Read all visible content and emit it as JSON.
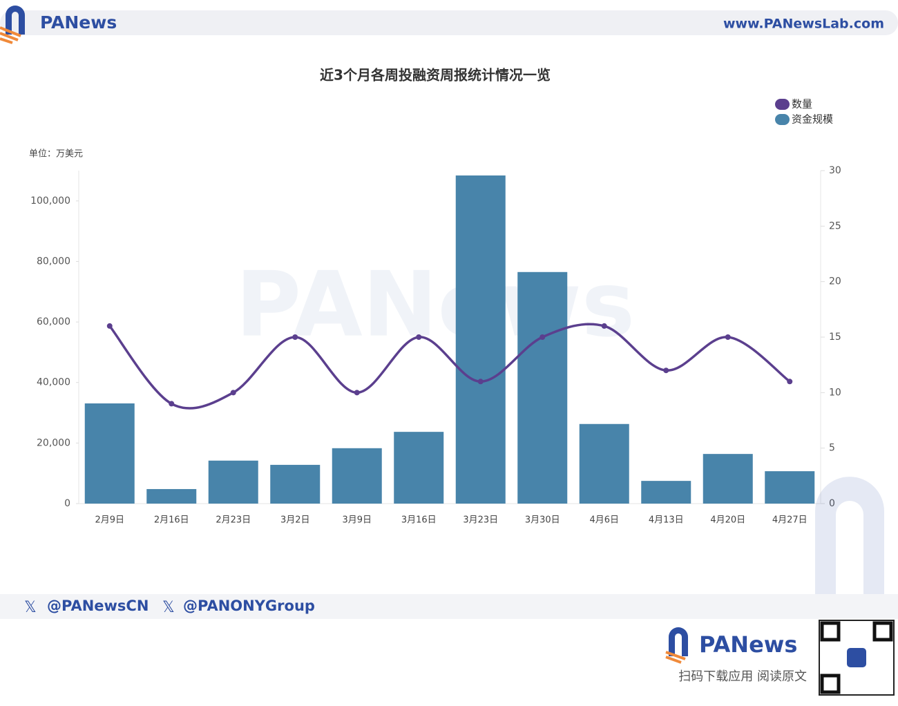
{
  "header": {
    "logo": "PANews",
    "url": "www.PANewsLab.com"
  },
  "chart_data": {
    "type": "bar-line",
    "title": "近3个月各周投融资周报统计情况一览",
    "y_label": "单位：万美元",
    "watermark": "PANews",
    "categories": [
      "2月9日",
      "2月16日",
      "2月23日",
      "3月2日",
      "3月9日",
      "3月16日",
      "3月23日",
      "3月30日",
      "4月6日",
      "4月13日",
      "4月20日",
      "4月27日"
    ],
    "series": [
      {
        "name": "数量",
        "type": "line",
        "axis": "y2",
        "color": "#5b3f8e",
        "values": [
          16,
          9,
          10,
          15,
          10,
          15,
          11,
          15,
          16,
          12,
          15,
          11
        ]
      },
      {
        "name": "资金规模",
        "type": "bar",
        "color": "#4884aa",
        "values": [
          33100,
          4800,
          14200,
          12800,
          18300,
          23700,
          108400,
          76500,
          26300,
          7500,
          16400,
          10700
        ]
      }
    ],
    "ylim": [
      0,
      110000
    ],
    "yticks": [
      0,
      {
        "value": 20000,
        "label": "20,000"
      },
      {
        "value": 40000,
        "label": "40,000"
      },
      {
        "value": 60000,
        "label": "60,000"
      },
      {
        "value": 80000,
        "label": "80,000"
      },
      {
        "value": 100000,
        "label": "100,000"
      }
    ],
    "y2lim": [
      0,
      30
    ],
    "y2ticks": [
      0,
      5,
      10,
      15,
      20,
      25,
      30
    ],
    "legend": "upper right"
  },
  "footer": {
    "handles": [
      "@PANewsCN",
      "@PANONYGroup"
    ],
    "logo": "PANews",
    "cta": "扫码下载应用 阅读原文"
  }
}
